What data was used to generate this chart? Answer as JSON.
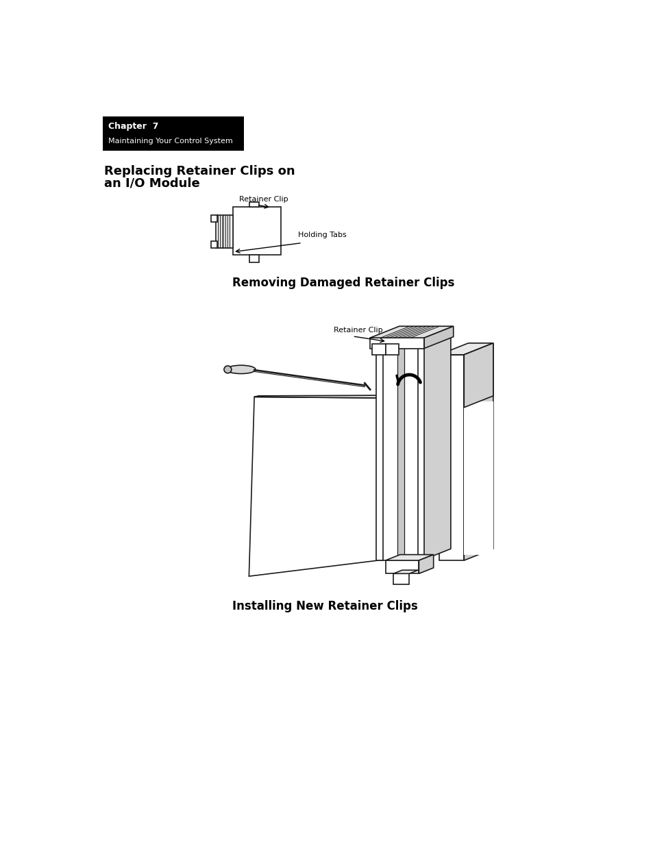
{
  "bg_color": "#ffffff",
  "header_box_color": "#000000",
  "header_text1": "Chapter  7",
  "header_text2": "Maintaining Your Control System",
  "header_text_color": "#ffffff",
  "section_title_line1": "Replacing Retainer Clips on",
  "section_title_line2": "an I/O Module",
  "section_title_fontsize": 13,
  "label_retainer_clip_top": "Retainer Clip",
  "label_holding_tabs": "Holding Tabs",
  "section2_title": "Removing Damaged Retainer Clips",
  "label_retainer_clip_large": "Retainer Clip",
  "section3_title": "Installing New Retainer Clips",
  "page_bg": "#ffffff",
  "lw": 1.2,
  "ec": "#1a1a1a"
}
